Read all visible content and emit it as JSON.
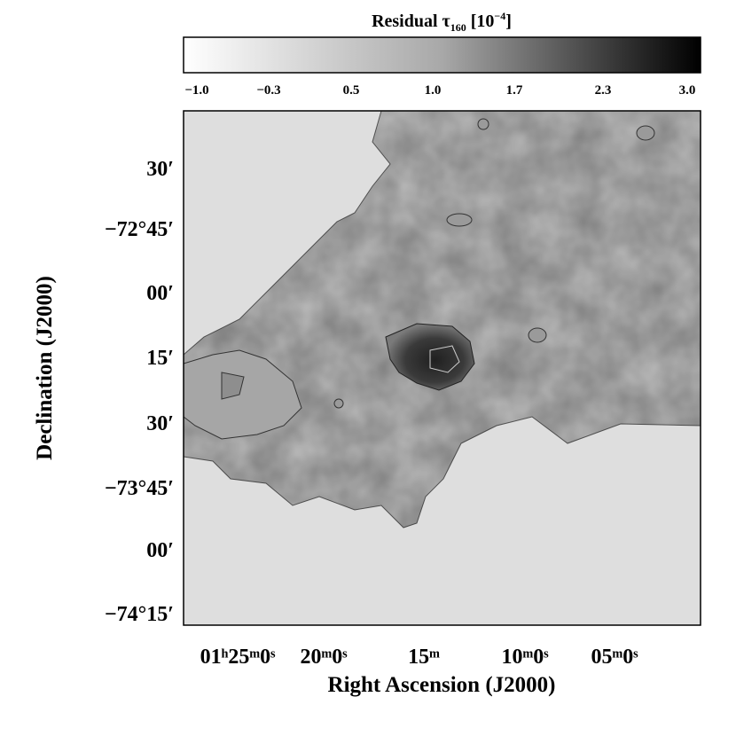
{
  "colorbar": {
    "title": "Residual τ",
    "title_sub": "160",
    "title_unit": "[10",
    "title_exp": "−4",
    "title_close": "]",
    "ticks": [
      "−1.0",
      "−0.3",
      "0.5",
      "1.0",
      "1.7",
      "2.3",
      "3.0"
    ]
  },
  "y_axis": {
    "label": "Declination (J2000)",
    "ticks": [
      "30′",
      "−72°45′",
      "00′",
      "15′",
      "30′",
      "−73°45′",
      "00′",
      "−74°15′"
    ]
  },
  "x_axis": {
    "label": "Right Ascension (J2000)",
    "ticks": [
      "01ʰ25ᵐ0ˢ",
      "20ᵐ0ˢ",
      "15ᵐ",
      "10ᵐ0ˢ",
      "05ᵐ0ˢ"
    ]
  }
}
